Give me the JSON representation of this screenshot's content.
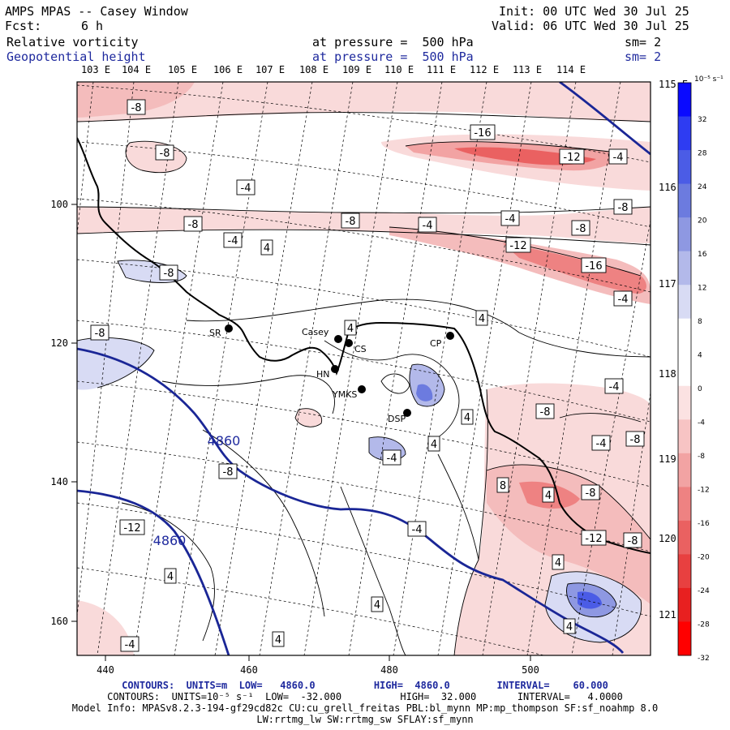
{
  "header": {
    "title": "AMPS MPAS -- Casey Window",
    "init": "Init: 00 UTC Wed 30 Jul 25",
    "fcst_label": "Fcst:",
    "fcst_value": "6 h",
    "valid": "Valid: 06 UTC Wed 30 Jul 25",
    "field1": "Relative vorticity",
    "field1_level": "at pressure =  500 hPa",
    "field1_sm": "sm= 2",
    "field2": "Geopotential height",
    "field2_level": "at pressure =  500 hPa",
    "field2_sm": "sm= 2"
  },
  "map": {
    "top_lon_labels": [
      "103 E",
      "104 E",
      "105 E",
      "106 E",
      "107 E",
      "108 E",
      "109 E",
      "110 E",
      "111 E",
      "112 E",
      "113 E",
      "114 E"
    ],
    "right_lon_labels": [
      "115 E",
      "116 E",
      "117 E",
      "118 E",
      "119 E",
      "120 E",
      "121 E"
    ],
    "x_ticks": [
      "440",
      "460",
      "480",
      "500"
    ],
    "y_ticks": [
      "100",
      "120",
      "140",
      "160"
    ],
    "stations": [
      {
        "name": "SR"
      },
      {
        "name": "Casey"
      },
      {
        "name": "CS"
      },
      {
        "name": "HN"
      },
      {
        "name": "YMKS"
      },
      {
        "name": "DSP"
      },
      {
        "name": "CP"
      }
    ],
    "height_contour_labels": [
      "4860",
      "4860"
    ],
    "vorticity_labels": [
      "-8",
      "-8",
      "-4",
      "-8",
      "-4",
      "4",
      "-8",
      "-8",
      "-8",
      "-4",
      "-4",
      "-8",
      "-16",
      "-12",
      "-4",
      "-8",
      "-12",
      "-16",
      "-4",
      "4",
      "4",
      "4",
      "-4",
      "-8",
      "-4",
      "-8",
      "4",
      "-4",
      "8",
      "4",
      "-8",
      "-12",
      "-8",
      "-8",
      "-12",
      "4",
      "4",
      "-4",
      "4",
      "4",
      "4",
      "-4"
    ]
  },
  "colorbar": {
    "unit": "10⁻⁵ s⁻¹",
    "ticks": [
      "32",
      "28",
      "24",
      "20",
      "16",
      "12",
      "8",
      "4",
      "0",
      "-4",
      "-8",
      "-12",
      "-16",
      "-20",
      "-24",
      "-28",
      "-32"
    ],
    "colors": [
      "#0a0aff",
      "#2e3cf2",
      "#4b5ce6",
      "#6c7bdf",
      "#8e98e2",
      "#b3b9ea",
      "#d8dbf4",
      "#ffffff",
      "#ffffff",
      "#fbe2e2",
      "#f7c4c4",
      "#f2a3a3",
      "#ee8282",
      "#ea6161",
      "#e84040",
      "#e82020",
      "#ff0000"
    ]
  },
  "footer": {
    "line1": "CONTOURS:  UNITS=m  LOW=   4860.0          HIGH=  4860.0        INTERVAL=    60.000",
    "line2": "CONTOURS:  UNITS=10⁻⁵ s⁻¹  LOW=  -32.000          HIGH=  32.000       INTERVAL=   4.0000",
    "line3": "Model Info: MPASv8.2.3-194-gf29cd82c CU:cu_grell_freitas PBL:bl_mynn MP:mp_thompson SF:sf_noahmp 8.0",
    "line4": "LW:rrtmg_lw SW:rrtmg_sw SFLAY:sf_mynn"
  }
}
